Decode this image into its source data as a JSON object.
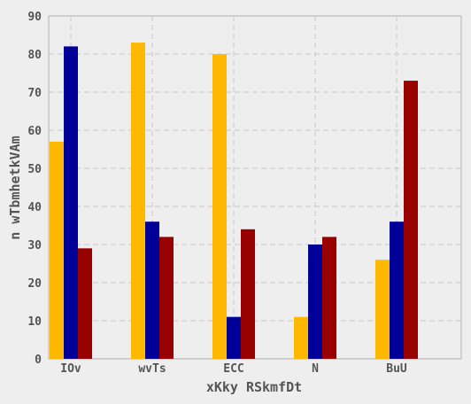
{
  "chart_data": {
    "type": "bar",
    "categories": [
      "IOv",
      "wvTs",
      "ECC",
      "N",
      "BuU"
    ],
    "series": [
      {
        "color": "#ffb800",
        "values": [
          57,
          83,
          80,
          11,
          26
        ]
      },
      {
        "color": "#000099",
        "values": [
          82,
          36,
          11,
          30,
          36
        ]
      },
      {
        "color": "#990000",
        "values": [
          29,
          32,
          34,
          32,
          73
        ]
      }
    ],
    "xlabel": "xKky RSkmfDt",
    "ylabel": "n wTbmhetkVAm",
    "ylim": [
      0,
      90
    ],
    "yticks": [
      0,
      10,
      20,
      30,
      40,
      50,
      60,
      70,
      80,
      90
    ],
    "grid": true,
    "legend": "none"
  }
}
